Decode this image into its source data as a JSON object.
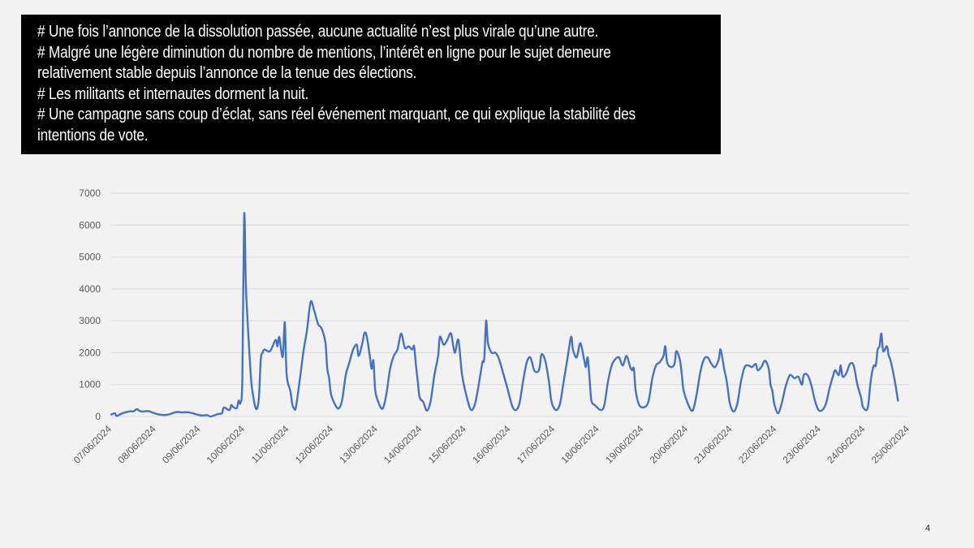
{
  "slide": {
    "page_number": "4",
    "bullets": [
      "# Une fois l’annonce de la dissolution passée, aucune actualité n’est plus virale qu’une autre.",
      "# Malgré une légère diminution du nombre de mentions, l’intérêt en ligne pour le sujet demeure",
      "relativement stable depuis l’annonce de la tenue des élections.",
      "# Les militants et internautes dorment la nuit.",
      "# Une campagne sans coup d’éclat, sans réel événement marquant, ce qui explique la stabilité des",
      "intentions de vote."
    ]
  },
  "colors": {
    "line": "#4472c4",
    "grid": "#d9d9d9",
    "axis_text": "#595959",
    "textbox_bg": "#000000",
    "textbox_text": "#ffffff"
  },
  "chart_data": {
    "type": "line",
    "title": "",
    "xlabel": "",
    "ylabel": "",
    "ylim": [
      0,
      7000
    ],
    "yticks": [
      0,
      1000,
      2000,
      3000,
      4000,
      5000,
      6000,
      7000
    ],
    "xticks": [
      "07/06/2024",
      "08/06/2024",
      "09/06/2024",
      "10/06/2024",
      "11/06/2024",
      "12/06/2024",
      "13/06/2024",
      "14/06/2024",
      "15/06/2024",
      "16/06/2024",
      "17/06/2024",
      "18/06/2024",
      "19/06/2024",
      "20/06/2024",
      "21/06/2024",
      "22/06/2024",
      "23/06/2024",
      "24/06/2024",
      "25/06/2024"
    ],
    "grid": "horizontal",
    "legend": "none",
    "series": [
      {
        "name": "",
        "points": [
          [
            "07/06/2024 00:00",
            60
          ],
          [
            "07/06/2024 02:00",
            100
          ],
          [
            "07/06/2024 03:00",
            20
          ],
          [
            "07/06/2024 06:00",
            100
          ],
          [
            "07/06/2024 10:00",
            160
          ],
          [
            "07/06/2024 12:00",
            160
          ],
          [
            "07/06/2024 14:00",
            230
          ],
          [
            "07/06/2024 16:00",
            160
          ],
          [
            "07/06/2024 20:00",
            170
          ],
          [
            "07/06/2024 22:00",
            130
          ],
          [
            "08/06/2024 02:00",
            60
          ],
          [
            "08/06/2024 06:00",
            50
          ],
          [
            "08/06/2024 10:00",
            120
          ],
          [
            "08/06/2024 12:00",
            140
          ],
          [
            "08/06/2024 14:00",
            130
          ],
          [
            "08/06/2024 18:00",
            130
          ],
          [
            "08/06/2024 22:00",
            70
          ],
          [
            "09/06/2024 01:00",
            30
          ],
          [
            "09/06/2024 04:00",
            40
          ],
          [
            "09/06/2024 06:00",
            0
          ],
          [
            "09/06/2024 10:00",
            80
          ],
          [
            "09/06/2024 12:00",
            100
          ],
          [
            "09/06/2024 13:00",
            280
          ],
          [
            "09/06/2024 16:00",
            200
          ],
          [
            "09/06/2024 17:00",
            360
          ],
          [
            "09/06/2024 18:00",
            300
          ],
          [
            "09/06/2024 20:00",
            260
          ],
          [
            "09/06/2024 21:00",
            500
          ],
          [
            "09/06/2024 22:00",
            430
          ],
          [
            "09/06/2024 23:00",
            1200
          ],
          [
            "10/06/2024 00:00",
            6320
          ],
          [
            "10/06/2024 01:00",
            4000
          ],
          [
            "10/06/2024 03:00",
            1800
          ],
          [
            "10/06/2024 04:00",
            1000
          ],
          [
            "10/06/2024 05:00",
            600
          ],
          [
            "10/06/2024 06:00",
            300
          ],
          [
            "10/06/2024 07:00",
            250
          ],
          [
            "10/06/2024 08:00",
            600
          ],
          [
            "10/06/2024 09:00",
            1800
          ],
          [
            "10/06/2024 10:00",
            2000
          ],
          [
            "10/06/2024 11:00",
            2100
          ],
          [
            "10/06/2024 14:00",
            2050
          ],
          [
            "10/06/2024 17:00",
            2400
          ],
          [
            "10/06/2024 18:00",
            2200
          ],
          [
            "10/06/2024 19:00",
            2500
          ],
          [
            "10/06/2024 20:00",
            2100
          ],
          [
            "10/06/2024 21:00",
            1900
          ],
          [
            "10/06/2024 22:00",
            2950
          ],
          [
            "10/06/2024 23:00",
            1300
          ],
          [
            "11/06/2024 01:00",
            800
          ],
          [
            "11/06/2024 02:00",
            400
          ],
          [
            "11/06/2024 03:00",
            250
          ],
          [
            "11/06/2024 04:00",
            280
          ],
          [
            "11/06/2024 06:00",
            1100
          ],
          [
            "11/06/2024 08:00",
            2000
          ],
          [
            "11/06/2024 10:00",
            2700
          ],
          [
            "11/06/2024 12:00",
            3600
          ],
          [
            "11/06/2024 14:00",
            3300
          ],
          [
            "11/06/2024 16:00",
            2900
          ],
          [
            "11/06/2024 18:00",
            2750
          ],
          [
            "11/06/2024 20:00",
            2300
          ],
          [
            "11/06/2024 21:00",
            1500
          ],
          [
            "11/06/2024 22:00",
            1200
          ],
          [
            "11/06/2024 23:00",
            700
          ],
          [
            "12/06/2024 01:00",
            400
          ],
          [
            "12/06/2024 03:00",
            250
          ],
          [
            "12/06/2024 05:00",
            500
          ],
          [
            "12/06/2024 07:00",
            1300
          ],
          [
            "12/06/2024 09:00",
            1700
          ],
          [
            "12/06/2024 11:00",
            2100
          ],
          [
            "12/06/2024 13:00",
            2250
          ],
          [
            "12/06/2024 14:00",
            1900
          ],
          [
            "12/06/2024 16:00",
            2300
          ],
          [
            "12/06/2024 17:00",
            2600
          ],
          [
            "12/06/2024 18:00",
            2600
          ],
          [
            "12/06/2024 19:00",
            2300
          ],
          [
            "12/06/2024 20:00",
            1900
          ],
          [
            "12/06/2024 21:00",
            1500
          ],
          [
            "12/06/2024 22:00",
            1750
          ],
          [
            "12/06/2024 23:00",
            800
          ],
          [
            "13/06/2024 01:00",
            400
          ],
          [
            "13/06/2024 03:00",
            250
          ],
          [
            "13/06/2024 05:00",
            700
          ],
          [
            "13/06/2024 07:00",
            1500
          ],
          [
            "13/06/2024 09:00",
            1900
          ],
          [
            "13/06/2024 11:00",
            2100
          ],
          [
            "13/06/2024 13:00",
            2600
          ],
          [
            "13/06/2024 15:00",
            2150
          ],
          [
            "13/06/2024 17:00",
            2200
          ],
          [
            "13/06/2024 19:00",
            2100
          ],
          [
            "13/06/2024 20:00",
            2200
          ],
          [
            "13/06/2024 21:00",
            1600
          ],
          [
            "13/06/2024 22:00",
            1100
          ],
          [
            "13/06/2024 23:00",
            600
          ],
          [
            "14/06/2024 01:00",
            450
          ],
          [
            "14/06/2024 03:00",
            180
          ],
          [
            "14/06/2024 05:00",
            500
          ],
          [
            "14/06/2024 07:00",
            1300
          ],
          [
            "14/06/2024 09:00",
            1900
          ],
          [
            "14/06/2024 10:00",
            2500
          ],
          [
            "14/06/2024 12:00",
            2250
          ],
          [
            "14/06/2024 14:00",
            2400
          ],
          [
            "14/06/2024 16:00",
            2600
          ],
          [
            "14/06/2024 18:00",
            2000
          ],
          [
            "14/06/2024 20:00",
            2400
          ],
          [
            "14/06/2024 22:00",
            1300
          ],
          [
            "15/06/2024 01:00",
            500
          ],
          [
            "15/06/2024 03:00",
            200
          ],
          [
            "15/06/2024 05:00",
            400
          ],
          [
            "15/06/2024 07:00",
            1000
          ],
          [
            "15/06/2024 09:00",
            1700
          ],
          [
            "15/06/2024 10:00",
            1800
          ],
          [
            "15/06/2024 11:00",
            3000
          ],
          [
            "15/06/2024 12:00",
            2300
          ],
          [
            "15/06/2024 14:00",
            2000
          ],
          [
            "15/06/2024 16:00",
            2000
          ],
          [
            "15/06/2024 18:00",
            1800
          ],
          [
            "15/06/2024 20:00",
            1400
          ],
          [
            "15/06/2024 22:00",
            1000
          ],
          [
            "16/06/2024 01:00",
            350
          ],
          [
            "16/06/2024 03:00",
            200
          ],
          [
            "16/06/2024 05:00",
            400
          ],
          [
            "16/06/2024 07:00",
            1100
          ],
          [
            "16/06/2024 09:00",
            1700
          ],
          [
            "16/06/2024 11:00",
            1850
          ],
          [
            "16/06/2024 13:00",
            1450
          ],
          [
            "16/06/2024 15:00",
            1400
          ],
          [
            "16/06/2024 16:00",
            1550
          ],
          [
            "16/06/2024 17:00",
            1950
          ],
          [
            "16/06/2024 19:00",
            1750
          ],
          [
            "16/06/2024 21:00",
            1100
          ],
          [
            "16/06/2024 22:00",
            600
          ],
          [
            "16/06/2024 23:00",
            350
          ],
          [
            "17/06/2024 01:00",
            200
          ],
          [
            "17/06/2024 03:00",
            400
          ],
          [
            "17/06/2024 05:00",
            1100
          ],
          [
            "17/06/2024 07:00",
            1800
          ],
          [
            "17/06/2024 09:00",
            2500
          ],
          [
            "17/06/2024 10:00",
            2100
          ],
          [
            "17/06/2024 12:00",
            1850
          ],
          [
            "17/06/2024 14:00",
            2300
          ],
          [
            "17/06/2024 16:00",
            1800
          ],
          [
            "17/06/2024 17:00",
            1550
          ],
          [
            "17/06/2024 18:00",
            1850
          ],
          [
            "17/06/2024 19:00",
            1200
          ],
          [
            "17/06/2024 20:00",
            500
          ],
          [
            "17/06/2024 22:00",
            350
          ],
          [
            "18/06/2024 01:00",
            200
          ],
          [
            "18/06/2024 03:00",
            350
          ],
          [
            "18/06/2024 05:00",
            1100
          ],
          [
            "18/06/2024 07:00",
            1600
          ],
          [
            "18/06/2024 09:00",
            1800
          ],
          [
            "18/06/2024 11:00",
            1850
          ],
          [
            "18/06/2024 13:00",
            1600
          ],
          [
            "18/06/2024 15:00",
            1900
          ],
          [
            "18/06/2024 17:00",
            1550
          ],
          [
            "18/06/2024 18:00",
            1450
          ],
          [
            "18/06/2024 19:00",
            1500
          ],
          [
            "18/06/2024 20:00",
            800
          ],
          [
            "18/06/2024 22:00",
            350
          ],
          [
            "19/06/2024 01:00",
            300
          ],
          [
            "19/06/2024 03:00",
            500
          ],
          [
            "19/06/2024 05:00",
            1200
          ],
          [
            "19/06/2024 07:00",
            1600
          ],
          [
            "19/06/2024 09:00",
            1700
          ],
          [
            "19/06/2024 11:00",
            1900
          ],
          [
            "19/06/2024 12:00",
            2200
          ],
          [
            "19/06/2024 13:00",
            1700
          ],
          [
            "19/06/2024 15:00",
            1550
          ],
          [
            "19/06/2024 17:00",
            1650
          ],
          [
            "19/06/2024 18:00",
            2050
          ],
          [
            "19/06/2024 20:00",
            1750
          ],
          [
            "19/06/2024 21:00",
            1300
          ],
          [
            "19/06/2024 22:00",
            800
          ],
          [
            "20/06/2024 01:00",
            300
          ],
          [
            "20/06/2024 03:00",
            200
          ],
          [
            "20/06/2024 05:00",
            700
          ],
          [
            "20/06/2024 07:00",
            1400
          ],
          [
            "20/06/2024 09:00",
            1800
          ],
          [
            "20/06/2024 11:00",
            1850
          ],
          [
            "20/06/2024 13:00",
            1650
          ],
          [
            "20/06/2024 15:00",
            1550
          ],
          [
            "20/06/2024 17:00",
            1800
          ],
          [
            "20/06/2024 18:00",
            2100
          ],
          [
            "20/06/2024 20:00",
            1450
          ],
          [
            "20/06/2024 21:00",
            1200
          ],
          [
            "20/06/2024 22:00",
            800
          ],
          [
            "20/06/2024 23:00",
            400
          ],
          [
            "21/06/2024 01:00",
            150
          ],
          [
            "21/06/2024 03:00",
            400
          ],
          [
            "21/06/2024 05:00",
            1100
          ],
          [
            "21/06/2024 07:00",
            1550
          ],
          [
            "21/06/2024 09:00",
            1600
          ],
          [
            "21/06/2024 11:00",
            1550
          ],
          [
            "21/06/2024 13:00",
            1650
          ],
          [
            "21/06/2024 14:00",
            1450
          ],
          [
            "21/06/2024 16:00",
            1550
          ],
          [
            "21/06/2024 18:00",
            1750
          ],
          [
            "21/06/2024 20:00",
            1500
          ],
          [
            "21/06/2024 21:00",
            1000
          ],
          [
            "21/06/2024 22:00",
            800
          ],
          [
            "21/06/2024 23:00",
            400
          ],
          [
            "22/06/2024 01:00",
            100
          ],
          [
            "22/06/2024 03:00",
            400
          ],
          [
            "22/06/2024 05:00",
            900
          ],
          [
            "22/06/2024 07:00",
            1250
          ],
          [
            "22/06/2024 08:00",
            1300
          ],
          [
            "22/06/2024 10:00",
            1200
          ],
          [
            "22/06/2024 12:00",
            1250
          ],
          [
            "22/06/2024 14:00",
            1000
          ],
          [
            "22/06/2024 15:00",
            1300
          ],
          [
            "22/06/2024 17:00",
            1300
          ],
          [
            "22/06/2024 19:00",
            1000
          ],
          [
            "22/06/2024 21:00",
            500
          ],
          [
            "22/06/2024 23:00",
            200
          ],
          [
            "23/06/2024 01:00",
            200
          ],
          [
            "23/06/2024 03:00",
            400
          ],
          [
            "23/06/2024 05:00",
            900
          ],
          [
            "23/06/2024 07:00",
            1300
          ],
          [
            "23/06/2024 08:00",
            1450
          ],
          [
            "23/06/2024 10:00",
            1300
          ],
          [
            "23/06/2024 11:00",
            1600
          ],
          [
            "23/06/2024 12:00",
            1250
          ],
          [
            "23/06/2024 14:00",
            1350
          ],
          [
            "23/06/2024 16:00",
            1650
          ],
          [
            "23/06/2024 18:00",
            1600
          ],
          [
            "23/06/2024 20:00",
            1000
          ],
          [
            "23/06/2024 22:00",
            600
          ],
          [
            "23/06/2024 23:00",
            300
          ],
          [
            "24/06/2024 01:00",
            200
          ],
          [
            "24/06/2024 02:00",
            400
          ],
          [
            "24/06/2024 03:00",
            1000
          ],
          [
            "24/06/2024 04:00",
            1400
          ],
          [
            "24/06/2024 05:00",
            1600
          ],
          [
            "24/06/2024 06:00",
            1600
          ],
          [
            "24/06/2024 07:00",
            2100
          ],
          [
            "24/06/2024 08:00",
            2200
          ],
          [
            "24/06/2024 09:00",
            2600
          ],
          [
            "24/06/2024 10:00",
            2050
          ],
          [
            "24/06/2024 12:00",
            2200
          ],
          [
            "24/06/2024 13:00",
            1900
          ],
          [
            "24/06/2024 14:00",
            1750
          ],
          [
            "24/06/2024 16:00",
            1200
          ],
          [
            "24/06/2024 18:00",
            500
          ]
        ]
      }
    ]
  }
}
